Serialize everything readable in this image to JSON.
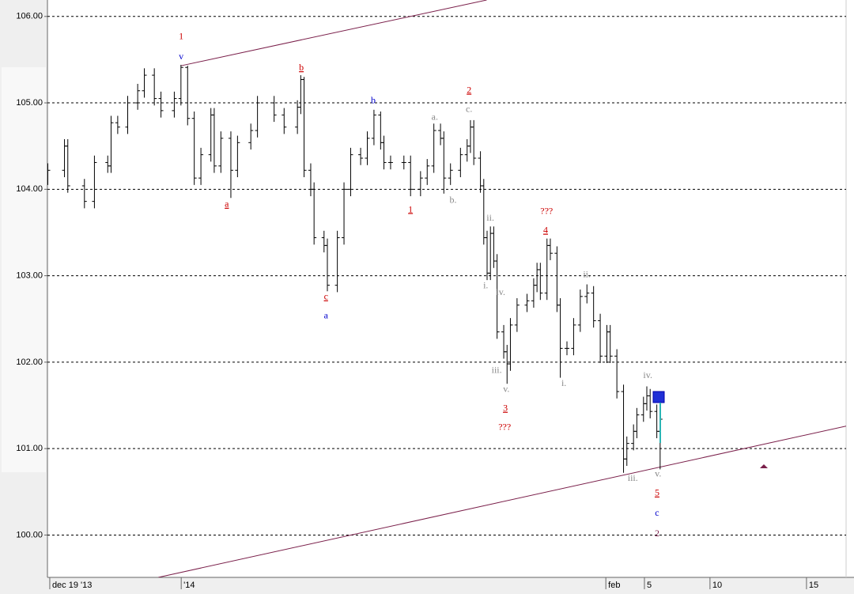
{
  "chart_data": {
    "type": "ohlc",
    "color": "#000000",
    "grid": true,
    "xlim": [
      0,
      240
    ],
    "ylim": [
      99.51,
      106.19
    ],
    "yticks": [
      {
        "value": 100,
        "label": "100.00"
      },
      {
        "value": 101,
        "label": "101.00"
      },
      {
        "value": 102,
        "label": "102.00"
      },
      {
        "value": 103,
        "label": "103.00"
      },
      {
        "value": 104,
        "label": "104.00"
      },
      {
        "value": 105,
        "label": "105.00"
      },
      {
        "value": 106,
        "label": "106.00"
      }
    ],
    "xticks": [
      {
        "value": 0.7,
        "label": "dec 19 '13"
      },
      {
        "value": 40.2,
        "label": "'14"
      },
      {
        "value": 167.8,
        "label": "feb"
      },
      {
        "value": 179.4,
        "label": "5"
      },
      {
        "value": 199.1,
        "label": "10"
      },
      {
        "value": 228.1,
        "label": "15"
      }
    ],
    "x": [
      0,
      5,
      6,
      11,
      14,
      18,
      19,
      21,
      24,
      27,
      29,
      32,
      34,
      38,
      40,
      42,
      44,
      46,
      49,
      50,
      52,
      55,
      57,
      61,
      63,
      68,
      71,
      75,
      76,
      77,
      79,
      80,
      83,
      84,
      87,
      89,
      91,
      94,
      96,
      98,
      100,
      101,
      103,
      107,
      109,
      112,
      114,
      116,
      118,
      119,
      121,
      124,
      126,
      127,
      128,
      130,
      131,
      132,
      133,
      134,
      135,
      137,
      138,
      139,
      141,
      144,
      146,
      147,
      148,
      150,
      151,
      153,
      154,
      156,
      158,
      160,
      162,
      164,
      166,
      168,
      169,
      171,
      173,
      174,
      176,
      177,
      179,
      180,
      181,
      183,
      184
    ],
    "bars": [
      [
        104.12,
        104.3,
        104.05,
        104.22
      ],
      [
        104.22,
        104.58,
        104.14,
        104.5
      ],
      [
        104.5,
        104.58,
        103.96,
        104.04
      ],
      [
        104.04,
        104.12,
        103.78,
        103.86
      ],
      [
        103.86,
        104.39,
        103.78,
        104.31
      ],
      [
        104.31,
        104.39,
        104.19,
        104.27
      ],
      [
        104.27,
        104.85,
        104.19,
        104.77
      ],
      [
        104.77,
        104.85,
        104.64,
        104.72
      ],
      [
        104.72,
        105.08,
        104.64,
        105.0
      ],
      [
        105.0,
        105.22,
        104.92,
        105.14
      ],
      [
        105.14,
        105.4,
        105.06,
        105.32
      ],
      [
        105.32,
        105.4,
        104.97,
        105.05
      ],
      [
        105.05,
        105.13,
        104.83,
        104.91
      ],
      [
        104.91,
        105.13,
        104.83,
        105.05
      ],
      [
        105.05,
        105.44,
        104.97,
        105.41
      ],
      [
        105.41,
        105.43,
        104.74,
        104.82
      ],
      [
        104.82,
        104.9,
        104.05,
        104.13
      ],
      [
        104.13,
        104.48,
        104.05,
        104.4
      ],
      [
        104.4,
        104.94,
        104.32,
        104.86
      ],
      [
        104.86,
        104.94,
        104.19,
        104.27
      ],
      [
        104.27,
        104.67,
        104.19,
        104.59
      ],
      [
        104.59,
        104.67,
        103.9,
        104.22
      ],
      [
        104.22,
        104.62,
        104.14,
        104.54
      ],
      [
        104.54,
        104.76,
        104.46,
        104.68
      ],
      [
        104.68,
        105.08,
        104.6,
        105.0
      ],
      [
        105.0,
        105.08,
        104.78,
        104.86
      ],
      [
        104.86,
        104.94,
        104.64,
        104.72
      ],
      [
        104.72,
        105.03,
        104.64,
        104.95
      ],
      [
        104.95,
        105.32,
        104.87,
        105.27
      ],
      [
        105.27,
        105.3,
        104.14,
        104.22
      ],
      [
        104.22,
        104.3,
        103.92,
        104.0
      ],
      [
        104.0,
        104.08,
        103.36,
        103.44
      ],
      [
        103.44,
        103.52,
        103.27,
        103.35
      ],
      [
        103.35,
        103.43,
        102.82,
        102.89
      ],
      [
        102.89,
        103.52,
        102.81,
        103.44
      ],
      [
        103.44,
        104.08,
        103.36,
        104.0
      ],
      [
        104.0,
        104.48,
        103.92,
        104.4
      ],
      [
        104.4,
        104.48,
        104.28,
        104.36
      ],
      [
        104.36,
        104.67,
        104.28,
        104.59
      ],
      [
        104.59,
        104.92,
        104.51,
        104.86
      ],
      [
        104.86,
        104.9,
        104.46,
        104.54
      ],
      [
        104.54,
        104.62,
        104.23,
        104.31
      ],
      [
        104.31,
        104.39,
        104.23,
        104.31
      ],
      [
        104.31,
        104.39,
        104.23,
        104.31
      ],
      [
        104.31,
        104.39,
        103.92,
        104.0
      ],
      [
        104.0,
        104.21,
        103.92,
        104.13
      ],
      [
        104.13,
        104.35,
        104.05,
        104.27
      ],
      [
        104.27,
        104.76,
        104.19,
        104.68
      ],
      [
        104.68,
        104.76,
        104.51,
        104.59
      ],
      [
        104.59,
        104.67,
        103.95,
        104.13
      ],
      [
        104.13,
        104.3,
        104.05,
        104.22
      ],
      [
        104.22,
        104.48,
        104.14,
        104.4
      ],
      [
        104.4,
        104.58,
        104.32,
        104.5
      ],
      [
        104.5,
        104.8,
        104.42,
        104.72
      ],
      [
        104.72,
        104.8,
        104.28,
        104.36
      ],
      [
        104.36,
        104.44,
        103.96,
        104.04
      ],
      [
        104.04,
        104.12,
        103.36,
        103.44
      ],
      [
        103.44,
        103.52,
        102.95,
        103.03
      ],
      [
        103.03,
        103.57,
        102.95,
        103.49
      ],
      [
        103.49,
        103.57,
        103.09,
        103.17
      ],
      [
        103.17,
        103.25,
        102.27,
        102.35
      ],
      [
        102.35,
        102.43,
        102.04,
        102.12
      ],
      [
        102.12,
        102.2,
        101.75,
        101.98
      ],
      [
        101.98,
        102.51,
        101.9,
        102.43
      ],
      [
        102.43,
        102.74,
        102.35,
        102.66
      ],
      [
        102.66,
        102.79,
        102.58,
        102.71
      ],
      [
        102.71,
        102.97,
        102.63,
        102.89
      ],
      [
        102.89,
        103.15,
        102.81,
        103.07
      ],
      [
        103.07,
        103.15,
        102.72,
        102.8
      ],
      [
        102.8,
        103.43,
        102.72,
        103.35
      ],
      [
        103.35,
        103.43,
        103.18,
        103.26
      ],
      [
        103.26,
        103.34,
        102.58,
        102.66
      ],
      [
        102.66,
        102.74,
        101.82,
        102.16
      ],
      [
        102.16,
        102.24,
        102.08,
        102.16
      ],
      [
        102.16,
        102.51,
        102.08,
        102.43
      ],
      [
        102.43,
        102.84,
        102.35,
        102.76
      ],
      [
        102.76,
        102.9,
        102.68,
        102.8
      ],
      [
        102.8,
        102.88,
        102.4,
        102.48
      ],
      [
        102.48,
        102.56,
        101.99,
        102.07
      ],
      [
        102.07,
        102.43,
        101.99,
        102.35
      ],
      [
        102.35,
        102.43,
        101.99,
        102.07
      ],
      [
        102.07,
        102.15,
        101.58,
        101.66
      ],
      [
        101.66,
        101.74,
        100.72,
        100.88
      ],
      [
        100.88,
        101.14,
        100.8,
        101.06
      ],
      [
        101.06,
        101.28,
        100.98,
        101.2
      ],
      [
        101.2,
        101.47,
        101.12,
        101.39
      ],
      [
        101.39,
        101.6,
        101.31,
        101.52
      ],
      [
        101.52,
        101.72,
        101.44,
        101.61
      ],
      [
        101.61,
        101.69,
        101.35,
        101.43
      ],
      [
        101.43,
        101.51,
        101.12,
        101.2
      ],
      [
        101.2,
        101.42,
        100.76,
        101.34
      ]
    ],
    "trendlines": [
      {
        "color": "#7a1f4a",
        "x": [
          40.2,
          132.0
        ],
        "y": [
          105.43,
          106.19
        ]
      },
      {
        "color": "#7a1f4a",
        "x": [
          33.3,
          240
        ],
        "y": [
          99.51,
          101.26
        ]
      }
    ],
    "labels": [
      {
        "text": "1",
        "x": 40.2,
        "y": 105.76,
        "color": "#cc0000",
        "underline": false
      },
      {
        "text": "v",
        "x": 40.2,
        "y": 105.53,
        "color": "#0000cc",
        "underline": false
      },
      {
        "text": "b",
        "x": 76.3,
        "y": 105.4,
        "color": "#cc0000",
        "underline": true
      },
      {
        "text": "a",
        "x": 53.9,
        "y": 103.82,
        "color": "#cc0000",
        "underline": true
      },
      {
        "text": "c",
        "x": 83.7,
        "y": 102.75,
        "color": "#cc0000",
        "underline": true
      },
      {
        "text": "a",
        "x": 83.7,
        "y": 102.53,
        "color": "#0000cc",
        "underline": false
      },
      {
        "text": "b",
        "x": 97.9,
        "y": 105.02,
        "color": "#0000cc",
        "underline": false
      },
      {
        "text": "a.",
        "x": 116.4,
        "y": 104.83,
        "color": "#888888",
        "underline": false
      },
      {
        "text": "2",
        "x": 126.7,
        "y": 105.14,
        "color": "#cc0000",
        "underline": true
      },
      {
        "text": "c.",
        "x": 126.7,
        "y": 104.92,
        "color": "#888888",
        "underline": false
      },
      {
        "text": "b.",
        "x": 121.9,
        "y": 103.87,
        "color": "#888888",
        "underline": false
      },
      {
        "text": "1",
        "x": 109.1,
        "y": 103.76,
        "color": "#cc0000",
        "underline": true
      },
      {
        "text": "ii.",
        "x": 133.1,
        "y": 103.66,
        "color": "#888888",
        "underline": false
      },
      {
        "text": "i.",
        "x": 131.7,
        "y": 102.88,
        "color": "#888888",
        "underline": false
      },
      {
        "text": "iv.",
        "x": 136.2,
        "y": 102.8,
        "color": "#888888",
        "underline": false
      },
      {
        "text": "iii.",
        "x": 135.0,
        "y": 101.9,
        "color": "#888888",
        "underline": false
      },
      {
        "text": "v.",
        "x": 137.9,
        "y": 101.68,
        "color": "#888888",
        "underline": false
      },
      {
        "text": "3",
        "x": 137.6,
        "y": 101.46,
        "color": "#cc0000",
        "underline": true
      },
      {
        "text": "???",
        "x": 137.4,
        "y": 101.24,
        "color": "#cc0000",
        "underline": false
      },
      {
        "text": "???",
        "x": 150.0,
        "y": 103.74,
        "color": "#cc0000",
        "underline": false
      },
      {
        "text": "4",
        "x": 149.7,
        "y": 103.52,
        "color": "#cc0000",
        "underline": true
      },
      {
        "text": "ii.",
        "x": 162.1,
        "y": 103.01,
        "color": "#888888",
        "underline": false
      },
      {
        "text": "i.",
        "x": 155.2,
        "y": 101.75,
        "color": "#888888",
        "underline": false
      },
      {
        "text": "iv.",
        "x": 180.4,
        "y": 101.84,
        "color": "#888888",
        "underline": false
      },
      {
        "text": "iii.",
        "x": 175.9,
        "y": 100.65,
        "color": "#888888",
        "underline": false
      },
      {
        "text": "v.",
        "x": 183.5,
        "y": 100.7,
        "color": "#888888",
        "underline": false
      },
      {
        "text": "5",
        "x": 183.2,
        "y": 100.48,
        "color": "#cc0000",
        "underline": true
      },
      {
        "text": "c",
        "x": 183.2,
        "y": 100.25,
        "color": "#0000cc",
        "underline": false
      },
      {
        "text": "2",
        "x": 183.2,
        "y": 100.01,
        "color": "#7a1f4a",
        "underline": false
      }
    ]
  }
}
